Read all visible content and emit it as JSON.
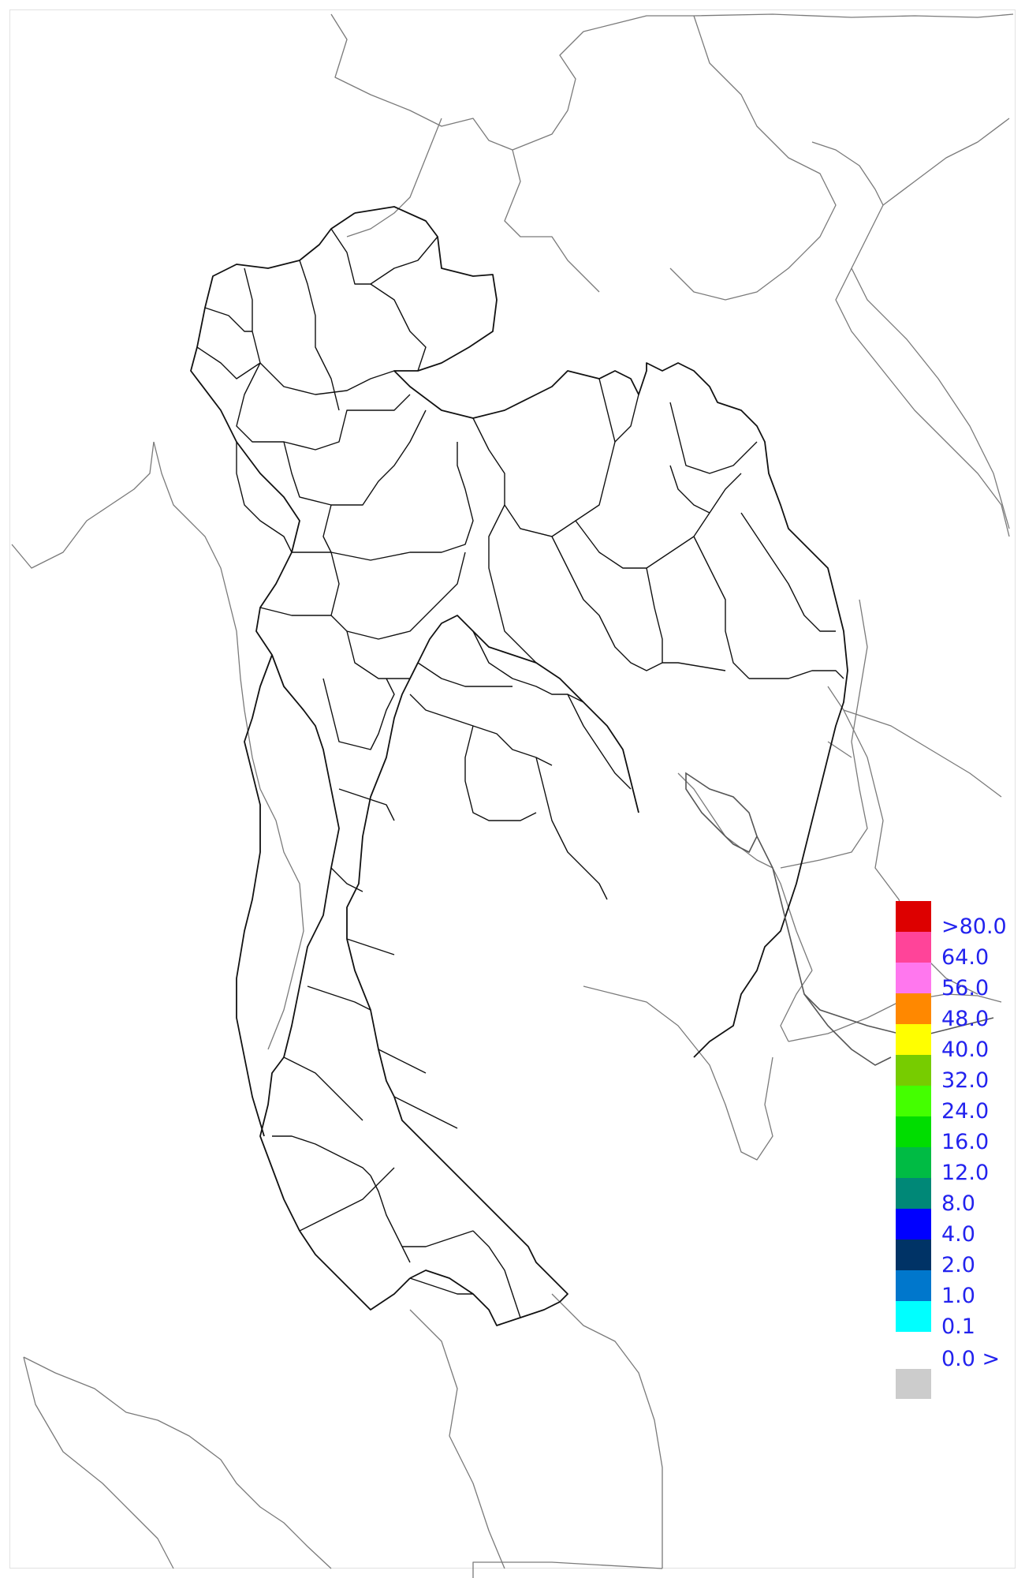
{
  "legend": {
    "bins": [
      {
        "label": ">80.0",
        "color": "#dd0000"
      },
      {
        "label": "64.0",
        "color": "#ff4499"
      },
      {
        "label": "56.0",
        "color": "#ff77ee"
      },
      {
        "label": "48.0",
        "color": "#ff8800"
      },
      {
        "label": "40.0",
        "color": "#ffff00"
      },
      {
        "label": "32.0",
        "color": "#77cc00"
      },
      {
        "label": "24.0",
        "color": "#44ff00"
      },
      {
        "label": "16.0",
        "color": "#00dd00"
      },
      {
        "label": "12.0",
        "color": "#00bb44"
      },
      {
        "label": "8.0",
        "color": "#008877"
      },
      {
        "label": "4.0",
        "color": "#0000ff"
      },
      {
        "label": "2.0",
        "color": "#003366"
      },
      {
        "label": "1.0",
        "color": "#0077cc"
      },
      {
        "label": "0.1",
        "color": "#00ffff"
      }
    ],
    "no_data": {
      "label": "0.0 >",
      "color": "#cccccc"
    },
    "label_color": "#2222ee"
  }
}
